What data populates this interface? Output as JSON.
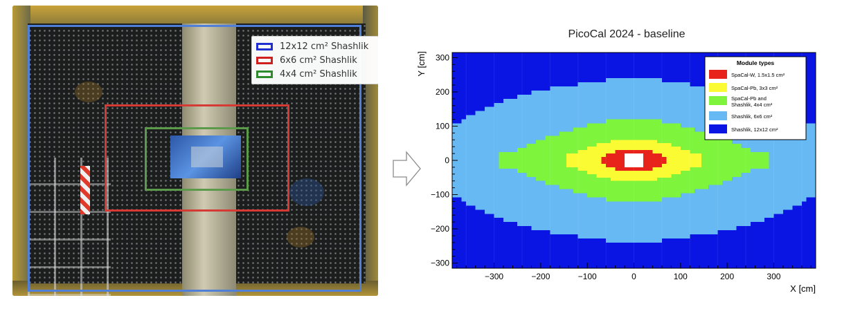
{
  "photo_legend": {
    "items": [
      {
        "label": "12x12 cm² Shashlik",
        "color": "#1f2fd0"
      },
      {
        "label": "6x6 cm² Shashlik",
        "color": "#d01f1f"
      },
      {
        "label": "4x4 cm² Shashlik",
        "color": "#2e8b2e"
      }
    ]
  },
  "arrow_icon": "right-arrow-icon",
  "chart_data": {
    "type": "heatmap",
    "title": "PicoCal 2024 - baseline",
    "xlabel": "X [cm]",
    "ylabel": "Y [cm]",
    "xlim": [
      -390,
      390
    ],
    "ylim": [
      -315,
      315
    ],
    "xticks": [
      -300,
      -200,
      -100,
      0,
      100,
      200,
      300
    ],
    "yticks": [
      -300,
      -200,
      -100,
      0,
      100,
      200,
      300
    ],
    "grid": false,
    "legend_placement": "top-right",
    "legend_title": "Module types",
    "module_types": [
      {
        "name": "SpaCal-W, 1.5x1.5 cm²",
        "color": "#e8231b"
      },
      {
        "name": "SpaCal-Pb, 3x3 cm²",
        "color": "#fbfb34"
      },
      {
        "name": "SpaCal-Pb and Shashlik, 4x4 cm²",
        "color": "#7ef43c"
      },
      {
        "name": "Shashlik, 6x6 cm²",
        "color": "#67b9f3"
      },
      {
        "name": "Shashlik, 12x12 cm²",
        "color": "#0a14e3"
      }
    ],
    "beam_hole": {
      "half_x": 20,
      "half_y": 20,
      "color": "#ffffff"
    },
    "regions": [
      {
        "type": "SpaCal-W, 1.5x1.5 cm²",
        "half_widths_by_row": [
          {
            "y": [
              -30,
              -20
            ],
            "half_x": 40
          },
          {
            "y": [
              -20,
              -10
            ],
            "half_x": 60
          },
          {
            "y": [
              -10,
              10
            ],
            "half_x": 70
          },
          {
            "y": [
              10,
              20
            ],
            "half_x": 60
          },
          {
            "y": [
              20,
              30
            ],
            "half_x": 40
          }
        ]
      },
      {
        "type": "SpaCal-Pb, 3x3 cm²",
        "half_widths_by_row": [
          {
            "y": [
              -60,
              -50
            ],
            "half_x": 50
          },
          {
            "y": [
              -50,
              -40
            ],
            "half_x": 80
          },
          {
            "y": [
              -40,
              -30
            ],
            "half_x": 100
          },
          {
            "y": [
              -30,
              -20
            ],
            "half_x": 120
          },
          {
            "y": [
              -20,
              20
            ],
            "half_x": 145
          },
          {
            "y": [
              20,
              30
            ],
            "half_x": 120
          },
          {
            "y": [
              30,
              40
            ],
            "half_x": 100
          },
          {
            "y": [
              40,
              50
            ],
            "half_x": 80
          },
          {
            "y": [
              50,
              60
            ],
            "half_x": 50
          }
        ]
      },
      {
        "type": "SpaCal-Pb and Shashlik, 4x4 cm²",
        "half_widths_by_row": [
          {
            "y": [
              -120,
              -108
            ],
            "half_x": 60
          },
          {
            "y": [
              -108,
              -96
            ],
            "half_x": 100
          },
          {
            "y": [
              -96,
              -84
            ],
            "half_x": 130
          },
          {
            "y": [
              -84,
              -72
            ],
            "half_x": 160
          },
          {
            "y": [
              -72,
              -60
            ],
            "half_x": 190
          },
          {
            "y": [
              -60,
              -48
            ],
            "half_x": 210
          },
          {
            "y": [
              -48,
              -36
            ],
            "half_x": 230
          },
          {
            "y": [
              -36,
              -24
            ],
            "half_x": 250
          },
          {
            "y": [
              -24,
              24
            ],
            "half_x": 290
          },
          {
            "y": [
              24,
              36
            ],
            "half_x": 250
          },
          {
            "y": [
              36,
              48
            ],
            "half_x": 230
          },
          {
            "y": [
              48,
              60
            ],
            "half_x": 210
          },
          {
            "y": [
              60,
              72
            ],
            "half_x": 190
          },
          {
            "y": [
              72,
              84
            ],
            "half_x": 160
          },
          {
            "y": [
              84,
              96
            ],
            "half_x": 130
          },
          {
            "y": [
              96,
              108
            ],
            "half_x": 100
          },
          {
            "y": [
              108,
              120
            ],
            "half_x": 60
          }
        ]
      },
      {
        "type": "Shashlik, 6x6 cm²",
        "half_widths_by_row": [
          {
            "y": [
              -240,
              -228
            ],
            "half_x": 60
          },
          {
            "y": [
              -228,
              -216
            ],
            "half_x": 120
          },
          {
            "y": [
              -216,
              -204
            ],
            "half_x": 180
          },
          {
            "y": [
              -204,
              -192
            ],
            "half_x": 220
          },
          {
            "y": [
              -192,
              -180
            ],
            "half_x": 250
          },
          {
            "y": [
              -180,
              -168
            ],
            "half_x": 280
          },
          {
            "y": [
              -168,
              -156
            ],
            "half_x": 300
          },
          {
            "y": [
              -156,
              -144
            ],
            "half_x": 320
          },
          {
            "y": [
              -144,
              -132
            ],
            "half_x": 340
          },
          {
            "y": [
              -132,
              -120
            ],
            "half_x": 360
          },
          {
            "y": [
              -120,
              -108
            ],
            "half_x": 370
          },
          {
            "y": [
              -108,
              108
            ],
            "half_x": 390
          },
          {
            "y": [
              108,
              120
            ],
            "half_x": 370
          },
          {
            "y": [
              120,
              132
            ],
            "half_x": 360
          },
          {
            "y": [
              132,
              144
            ],
            "half_x": 340
          },
          {
            "y": [
              144,
              156
            ],
            "half_x": 320
          },
          {
            "y": [
              156,
              168
            ],
            "half_x": 300
          },
          {
            "y": [
              168,
              180
            ],
            "half_x": 280
          },
          {
            "y": [
              180,
              192
            ],
            "half_x": 250
          },
          {
            "y": [
              192,
              204
            ],
            "half_x": 220
          },
          {
            "y": [
              204,
              216
            ],
            "half_x": 180
          },
          {
            "y": [
              216,
              228
            ],
            "half_x": 120
          },
          {
            "y": [
              228,
              240
            ],
            "half_x": 60
          }
        ]
      },
      {
        "type": "Shashlik, 12x12 cm²",
        "half_widths_by_row": [
          {
            "y": [
              -315,
              315
            ],
            "half_x": 390
          }
        ]
      }
    ]
  }
}
